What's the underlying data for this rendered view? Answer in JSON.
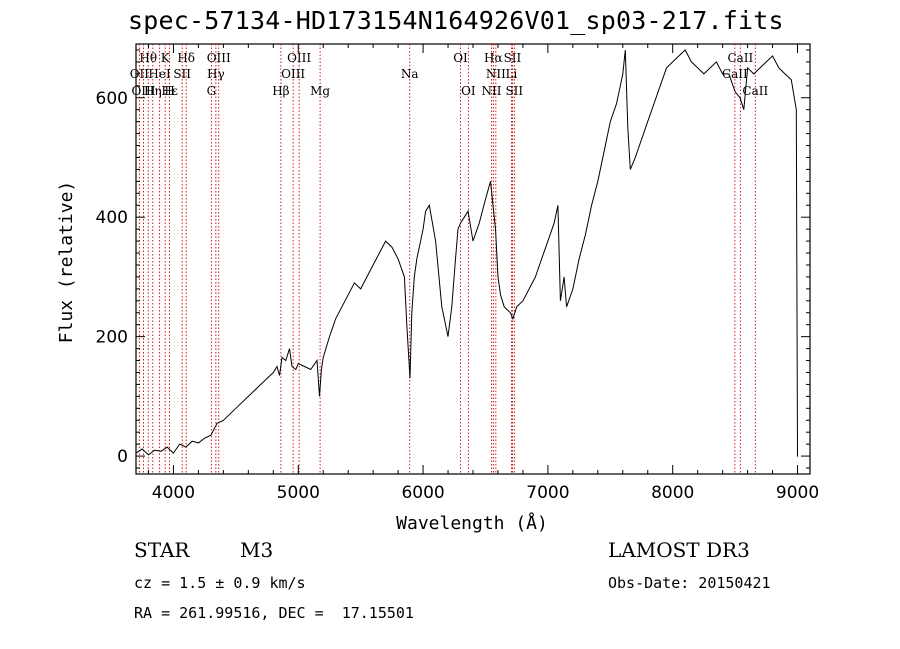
{
  "chart_data": {
    "type": "line",
    "title": "spec-57134-HD173154N164926V01_sp03-217.fits",
    "xlabel": "Wavelength (Å)",
    "ylabel": "Flux (relative)",
    "xlim": [
      3700,
      9100
    ],
    "ylim": [
      -30,
      690
    ],
    "xticks": [
      4000,
      5000,
      6000,
      7000,
      8000,
      9000
    ],
    "yticks": [
      0,
      200,
      400,
      600
    ],
    "grid": false,
    "series": [
      {
        "name": "spectrum",
        "x": [
          3700,
          3750,
          3800,
          3850,
          3900,
          3950,
          4000,
          4050,
          4100,
          4150,
          4200,
          4250,
          4300,
          4350,
          4400,
          4450,
          4500,
          4550,
          4600,
          4650,
          4700,
          4750,
          4800,
          4830,
          4850,
          4870,
          4900,
          4930,
          4950,
          4980,
          5000,
          5050,
          5100,
          5150,
          5170,
          5185,
          5200,
          5250,
          5300,
          5350,
          5400,
          5450,
          5500,
          5550,
          5600,
          5650,
          5700,
          5750,
          5800,
          5850,
          5870,
          5895,
          5910,
          5930,
          5950,
          6000,
          6020,
          6050,
          6100,
          6150,
          6170,
          6200,
          6230,
          6260,
          6280,
          6300,
          6330,
          6360,
          6400,
          6450,
          6500,
          6540,
          6560,
          6580,
          6600,
          6620,
          6650,
          6700,
          6720,
          6750,
          6800,
          6850,
          6900,
          6950,
          7000,
          7050,
          7080,
          7100,
          7130,
          7150,
          7200,
          7250,
          7300,
          7350,
          7400,
          7450,
          7500,
          7550,
          7580,
          7600,
          7620,
          7640,
          7660,
          7700,
          7750,
          7800,
          7850,
          7900,
          7950,
          8000,
          8050,
          8100,
          8150,
          8200,
          8250,
          8300,
          8350,
          8400,
          8450,
          8500,
          8540,
          8570,
          8600,
          8650,
          8700,
          8750,
          8800,
          8850,
          8900,
          8950,
          8990,
          9000,
          9005
        ],
        "y": [
          5,
          12,
          2,
          10,
          8,
          15,
          5,
          20,
          15,
          25,
          22,
          30,
          35,
          55,
          60,
          70,
          80,
          90,
          100,
          110,
          120,
          130,
          140,
          150,
          135,
          165,
          160,
          180,
          150,
          145,
          155,
          150,
          145,
          160,
          100,
          145,
          165,
          200,
          230,
          250,
          270,
          290,
          280,
          300,
          320,
          340,
          360,
          350,
          330,
          300,
          220,
          130,
          240,
          300,
          330,
          380,
          410,
          420,
          360,
          250,
          230,
          200,
          250,
          330,
          380,
          390,
          400,
          410,
          360,
          390,
          430,
          460,
          420,
          380,
          300,
          270,
          250,
          240,
          230,
          250,
          260,
          280,
          300,
          330,
          360,
          390,
          420,
          260,
          300,
          250,
          280,
          330,
          370,
          420,
          460,
          510,
          560,
          590,
          620,
          640,
          680,
          550,
          480,
          500,
          530,
          560,
          590,
          620,
          650,
          660,
          670,
          680,
          660,
          650,
          640,
          650,
          660,
          640,
          640,
          610,
          600,
          580,
          650,
          640,
          650,
          660,
          670,
          650,
          640,
          630,
          580,
          0,
          0
        ]
      }
    ],
    "annotations": {
      "line_labels": [
        {
          "label": "Hθ",
          "row": 1,
          "wavelength": 3798
        },
        {
          "label": "OII",
          "row": 2,
          "wavelength": 3727
        },
        {
          "label": "OIII",
          "row": 3,
          "wavelength": 3760
        },
        {
          "label": "Hε",
          "row": 3,
          "wavelength": 3970
        },
        {
          "label": "K",
          "row": 1,
          "wavelength": 3934
        },
        {
          "label": "HeI",
          "row": 2,
          "wavelength": 3889
        },
        {
          "label": "Hη",
          "row": 3,
          "wavelength": 3835
        },
        {
          "label": "SII",
          "row": 2,
          "wavelength": 4070
        },
        {
          "label": "H",
          "row": 3,
          "wavelength": 3969
        },
        {
          "label": "Hδ",
          "row": 1,
          "wavelength": 4102
        },
        {
          "label": "OIII",
          "row": 1,
          "wavelength": 4363
        },
        {
          "label": "Hγ",
          "row": 2,
          "wavelength": 4340
        },
        {
          "label": "G",
          "row": 3,
          "wavelength": 4304
        },
        {
          "label": "OIII",
          "row": 1,
          "wavelength": 5007
        },
        {
          "label": "OIII",
          "row": 2,
          "wavelength": 4959
        },
        {
          "label": "Hβ",
          "row": 3,
          "wavelength": 4861
        },
        {
          "label": "Mg",
          "row": 3,
          "wavelength": 5175
        },
        {
          "label": "Na",
          "row": 2,
          "wavelength": 5893
        },
        {
          "label": "OI",
          "row": 1,
          "wavelength": 6300
        },
        {
          "label": "OI",
          "row": 3,
          "wavelength": 6363
        },
        {
          "label": "Hα",
          "row": 1,
          "wavelength": 6563
        },
        {
          "label": "SII",
          "row": 1,
          "wavelength": 6716
        },
        {
          "label": "NII",
          "row": 2,
          "wavelength": 6583
        },
        {
          "label": "Li",
          "row": 2,
          "wavelength": 6708
        },
        {
          "label": "NII",
          "row": 3,
          "wavelength": 6548
        },
        {
          "label": "SII",
          "row": 3,
          "wavelength": 6731
        },
        {
          "label": "CaII",
          "row": 1,
          "wavelength": 8542
        },
        {
          "label": "CaII",
          "row": 2,
          "wavelength": 8498
        },
        {
          "label": "CaII",
          "row": 3,
          "wavelength": 8662
        }
      ],
      "line_markers": [
        3727,
        3760,
        3798,
        3835,
        3889,
        3934,
        3969,
        4070,
        4102,
        4304,
        4340,
        4363,
        4861,
        4959,
        5007,
        5175,
        5893,
        6300,
        6363,
        6548,
        6563,
        6583,
        6708,
        6716,
        6731,
        8498,
        8542,
        8662
      ]
    }
  },
  "info": {
    "object_type": "STAR",
    "subclass": "M3",
    "survey": "LAMOST DR3",
    "cz": "cz = 1.5 ± 0.9 km/s",
    "obs_date": "Obs-Date: 20150421",
    "radec": "RA = 261.99516, DEC =  17.15501"
  },
  "colors": {
    "line_marker": "#cc0000",
    "spectrum": "#000000"
  }
}
